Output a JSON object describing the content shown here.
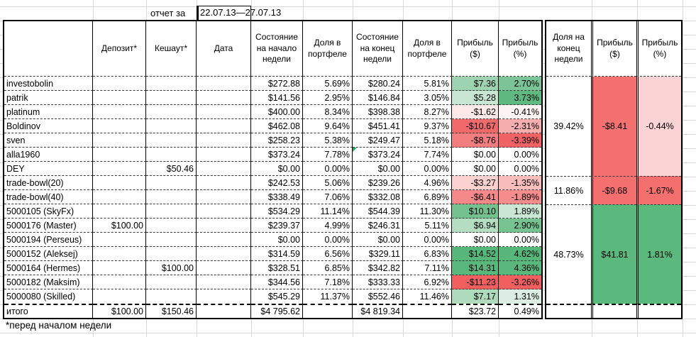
{
  "meta": {
    "report_label": "отчет за",
    "report_period": "22.07.13—27.07.13",
    "footnote": "*перед началом недели",
    "totals_label": "итого"
  },
  "colors": {
    "gridline": "#d9d9d9",
    "table_border": "#000000",
    "comment_marker": "#21a366"
  },
  "header": {
    "main": [
      "",
      "Депозит*",
      "Кешаут*",
      "Дата",
      "Состояние на начало недели",
      "Доля в портфеле",
      "Состояние на конец недели",
      "Доля в портфеле",
      "Прибыль ($)",
      "Прибыль (%)"
    ],
    "summary": [
      "Доля на конец недели",
      "Прибыль ($)",
      "Прибыль (%)"
    ]
  },
  "rows": [
    {
      "name": "investobolin",
      "deposit": "",
      "cashout": "",
      "date": "",
      "start": "$272.88",
      "start_share": "5.69%",
      "end": "$280.24",
      "end_share": "5.81%",
      "profit_usd": "$7.36",
      "profit_usd_bg": "#9ed3b1",
      "profit_pct": "2.70%",
      "profit_pct_bg": "#7cc497",
      "marker": false
    },
    {
      "name": "patrik",
      "deposit": "",
      "cashout": "",
      "date": "",
      "start": "$141.56",
      "start_share": "2.95%",
      "end": "$146.84",
      "end_share": "3.05%",
      "profit_usd": "$5.28",
      "profit_usd_bg": "#c9e6d2",
      "profit_pct": "3.73%",
      "profit_pct_bg": "#5eba80",
      "marker": false
    },
    {
      "name": "platinum",
      "deposit": "",
      "cashout": "",
      "date": "",
      "start": "$400.00",
      "start_share": "8.34%",
      "end": "$398.38",
      "end_share": "8.27%",
      "profit_usd": "-$1.62",
      "profit_usd_bg": "#fce9e8",
      "profit_pct": "-0.41%",
      "profit_pct_bg": "#fdf4f3",
      "marker": false
    },
    {
      "name": "Boldinov",
      "deposit": "",
      "cashout": "",
      "date": "",
      "start": "$462.08",
      "start_share": "9.64%",
      "end": "$451.41",
      "end_share": "9.37%",
      "profit_usd": "-$10.67",
      "profit_usd_bg": "#f16a6b",
      "profit_pct": "-2.31%",
      "profit_pct_bg": "#f7aeae",
      "marker": false
    },
    {
      "name": "sven",
      "deposit": "",
      "cashout": "",
      "date": "",
      "start": "$258.23",
      "start_share": "5.38%",
      "end": "$249.47",
      "end_share": "5.18%",
      "profit_usd": "-$8.76",
      "profit_usd_bg": "#f37e7f",
      "profit_pct": "-3.39%",
      "profit_pct_bg": "#f06263",
      "marker": false
    },
    {
      "name": "alla1960",
      "deposit": "",
      "cashout": "",
      "date": "",
      "start": "$373.24",
      "start_share": "7.78%",
      "end": "$373.24",
      "end_share": "7.74%",
      "profit_usd": "$0.00",
      "profit_usd_bg": "",
      "profit_pct": "0.00%",
      "profit_pct_bg": "",
      "marker": true
    },
    {
      "name": "DEY",
      "deposit": "",
      "cashout": "$50.46",
      "date": "",
      "start": "$0.00",
      "start_share": "0.00%",
      "end": "$0.00",
      "end_share": "0.00%",
      "profit_usd": "$0.00",
      "profit_usd_bg": "",
      "profit_pct": "0.00%",
      "profit_pct_bg": "",
      "marker": false
    },
    {
      "name": "trade-bowl(20)",
      "deposit": "",
      "cashout": "",
      "date": "",
      "start": "$242.53",
      "start_share": "5.06%",
      "end": "$239.26",
      "end_share": "4.96%",
      "profit_usd": "-$3.27",
      "profit_usd_bg": "#fbd1cf",
      "profit_pct": "-1.35%",
      "profit_pct_bg": "#f9bdbc",
      "marker": false
    },
    {
      "name": "trade-bowl(40)",
      "deposit": "",
      "cashout": "",
      "date": "",
      "start": "$338.49",
      "start_share": "7.06%",
      "end": "$332.08",
      "end_share": "6.89%",
      "profit_usd": "-$6.41",
      "profit_usd_bg": "#f58889",
      "profit_pct": "-1.89%",
      "profit_pct_bg": "#f68c8c",
      "marker": false
    },
    {
      "name": "5000105 (SkyFx)",
      "deposit": "",
      "cashout": "",
      "date": "",
      "start": "$534.29",
      "start_share": "11.14%",
      "end": "$544.39",
      "end_share": "11.30%",
      "profit_usd": "$10.10",
      "profit_usd_bg": "#74c28f",
      "profit_pct": "1.89%",
      "profit_pct_bg": "#cbe7d4",
      "marker": false
    },
    {
      "name": "5000176 (Master)",
      "deposit": "$100.00",
      "cashout": "",
      "date": "",
      "start": "$239.37",
      "start_share": "4.99%",
      "end": "$246.31",
      "end_share": "5.11%",
      "profit_usd": "$6.94",
      "profit_usd_bg": "#b5ddc2",
      "profit_pct": "2.90%",
      "profit_pct_bg": "#76c291",
      "marker": false
    },
    {
      "name": "5000194 (Perseus)",
      "deposit": "",
      "cashout": "",
      "date": "",
      "start": "$0.00",
      "start_share": "0.00%",
      "end": "$0.00",
      "end_share": "0.00%",
      "profit_usd": "$0.00",
      "profit_usd_bg": "",
      "profit_pct": "0.00%",
      "profit_pct_bg": "",
      "marker": false
    },
    {
      "name": "5000152 (Aleksej)",
      "deposit": "",
      "cashout": "",
      "date": "",
      "start": "$314.59",
      "start_share": "6.56%",
      "end": "$329.11",
      "end_share": "6.83%",
      "profit_usd": "$14.52",
      "profit_usd_bg": "#57b77b",
      "profit_pct": "4.62%",
      "profit_pct_bg": "#57b77b",
      "marker": false
    },
    {
      "name": "5000164 (Hermes)",
      "deposit": "",
      "cashout": "$100.00",
      "date": "",
      "start": "$328.51",
      "start_share": "6.85%",
      "end": "$342.82",
      "end_share": "7.11%",
      "profit_usd": "$14.31",
      "profit_usd_bg": "#5bb87d",
      "profit_pct": "4.36%",
      "profit_pct_bg": "#5bb87d",
      "marker": false
    },
    {
      "name": "5000182 (Maksim)",
      "deposit": "",
      "cashout": "",
      "date": "",
      "start": "$344.56",
      "start_share": "7.18%",
      "end": "$333.33",
      "end_share": "6.92%",
      "profit_usd": "-$11.23",
      "profit_usd_bg": "#f1605f",
      "profit_pct": "-3.26%",
      "profit_pct_bg": "#f1605f",
      "marker": false
    },
    {
      "name": "5000080 (Skilled)",
      "deposit": "",
      "cashout": "",
      "date": "",
      "start": "$545.29",
      "start_share": "11.37%",
      "end": "$552.46",
      "end_share": "11.46%",
      "profit_usd": "$7.17",
      "profit_usd_bg": "#aedbbc",
      "profit_pct": "1.31%",
      "profit_pct_bg": "#dceee3",
      "marker": false
    }
  ],
  "totals": {
    "label": "итого",
    "deposit": "$100.00",
    "cashout": "$150.46",
    "date": "",
    "start": "$4 795.62",
    "start_share": "",
    "end": "$4 819.34",
    "end_share": "",
    "profit_usd": "$23.72",
    "profit_pct": "0.49%"
  },
  "summary_groups": [
    {
      "span": 7,
      "share": "39.42%",
      "profit_usd": "-$8.41",
      "profit_usd_bg": "#f4716f",
      "profit_pct": "-0.44%",
      "profit_pct_bg": "#fbd3d4"
    },
    {
      "span": 2,
      "share": "11.86%",
      "profit_usd": "-$9.68",
      "profit_usd_bg": "#f4706e",
      "profit_pct": "-1.67%",
      "profit_pct_bg": "#f4706e"
    },
    {
      "span": 7,
      "share": "48.73%",
      "profit_usd": "$41.81",
      "profit_usd_bg": "#5cb97e",
      "profit_pct": "1.81%",
      "profit_pct_bg": "#5cb97e"
    }
  ]
}
